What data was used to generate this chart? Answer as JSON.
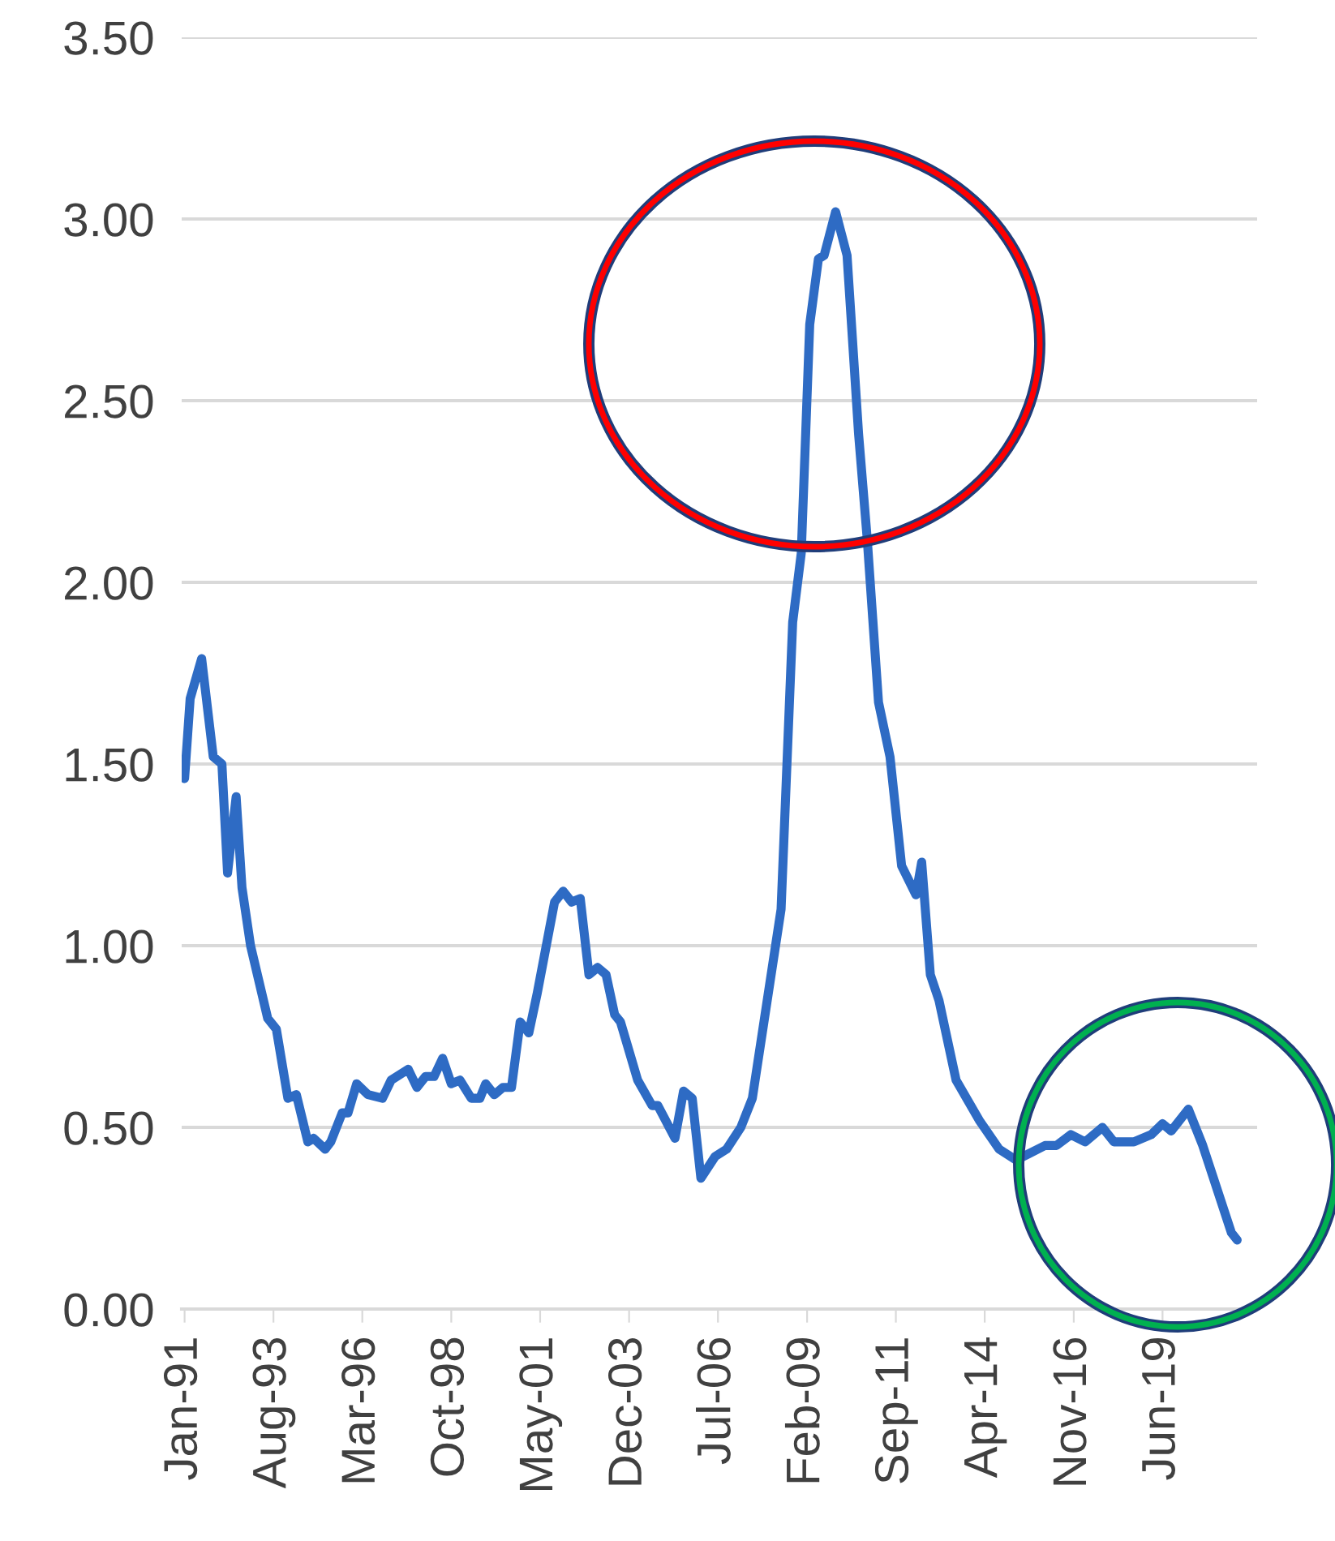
{
  "chart_data": {
    "type": "line",
    "x": [
      "1991-01",
      "1991-03",
      "1991-07",
      "1991-11",
      "1992-02",
      "1992-04",
      "1992-07",
      "1992-09",
      "1992-12",
      "1993-06",
      "1993-09",
      "1994-01",
      "1994-04",
      "1994-08",
      "1994-10",
      "1995-02",
      "1995-04",
      "1995-08",
      "1995-10",
      "1996-01",
      "1996-05",
      "1996-10",
      "1997-01",
      "1997-07",
      "1997-10",
      "1998-01",
      "1998-04",
      "1998-07",
      "1998-10",
      "1999-01",
      "1999-05",
      "1999-08",
      "1999-10",
      "2000-01",
      "2000-04",
      "2000-07",
      "2000-10",
      "2001-01",
      "2001-04",
      "2001-10",
      "2002-01",
      "2002-04",
      "2002-07",
      "2002-10",
      "2003-01",
      "2003-04",
      "2003-07",
      "2003-09",
      "2004-03",
      "2004-08",
      "2004-10",
      "2005-04",
      "2005-07",
      "2005-10",
      "2006-01",
      "2006-06",
      "2006-10",
      "2007-03",
      "2007-07",
      "2007-11",
      "2008-05",
      "2008-09",
      "2008-12",
      "2009-03",
      "2009-06",
      "2009-08",
      "2009-12",
      "2010-04",
      "2010-08",
      "2010-11",
      "2011-03",
      "2011-07",
      "2011-11",
      "2012-04",
      "2012-06",
      "2012-09",
      "2012-12",
      "2013-06",
      "2014-02",
      "2014-09",
      "2015-03",
      "2016-01",
      "2016-05",
      "2016-10",
      "2017-03",
      "2017-09",
      "2018-01",
      "2018-08",
      "2019-02",
      "2019-06",
      "2019-09",
      "2020-03",
      "2020-08",
      "2021-06",
      "2021-08"
    ],
    "series": [
      {
        "color": "#2e6bc4",
        "values": [
          1.46,
          1.68,
          1.79,
          1.52,
          1.5,
          1.2,
          1.41,
          1.16,
          1.0,
          0.8,
          0.77,
          0.58,
          0.59,
          0.46,
          0.47,
          0.44,
          0.46,
          0.54,
          0.54,
          0.62,
          0.59,
          0.58,
          0.63,
          0.66,
          0.61,
          0.64,
          0.64,
          0.69,
          0.62,
          0.63,
          0.58,
          0.58,
          0.62,
          0.59,
          0.61,
          0.61,
          0.79,
          0.76,
          0.87,
          1.12,
          1.15,
          1.12,
          1.13,
          0.92,
          0.94,
          0.92,
          0.81,
          0.79,
          0.63,
          0.56,
          0.56,
          0.47,
          0.6,
          0.58,
          0.36,
          0.42,
          0.44,
          0.5,
          0.58,
          0.79,
          1.1,
          1.89,
          2.08,
          2.71,
          2.89,
          2.9,
          3.02,
          2.9,
          2.41,
          2.12,
          1.67,
          1.52,
          1.22,
          1.14,
          1.23,
          0.92,
          0.85,
          0.63,
          0.52,
          0.44,
          0.41,
          0.45,
          0.45,
          0.48,
          0.46,
          0.5,
          0.46,
          0.46,
          0.48,
          0.51,
          0.49,
          0.55,
          0.45,
          0.21,
          0.19
        ]
      }
    ],
    "xlim": [
      "1990-12",
      "2022-03"
    ],
    "xticks": [
      {
        "value": "1991-01",
        "label": "Jan-91"
      },
      {
        "value": "1993-08",
        "label": "Aug-93"
      },
      {
        "value": "1996-03",
        "label": "Mar-96"
      },
      {
        "value": "1998-10",
        "label": "Oct-98"
      },
      {
        "value": "2001-05",
        "label": "May-01"
      },
      {
        "value": "2003-12",
        "label": "Dec-03"
      },
      {
        "value": "2006-07",
        "label": "Jul-06"
      },
      {
        "value": "2009-02",
        "label": "Feb-09"
      },
      {
        "value": "2011-09",
        "label": "Sep-11"
      },
      {
        "value": "2014-04",
        "label": "Apr-14"
      },
      {
        "value": "2016-11",
        "label": "Nov-16"
      },
      {
        "value": "2019-06",
        "label": "Jun-19"
      }
    ],
    "ylim": [
      0,
      3.5
    ],
    "yticks": [
      {
        "value": 0,
        "label": "0.00"
      },
      {
        "value": 0.5,
        "label": "0.50"
      },
      {
        "value": 1,
        "label": "1.00"
      },
      {
        "value": 1.5,
        "label": "1.50"
      },
      {
        "value": 2,
        "label": "2.00"
      },
      {
        "value": 2.5,
        "label": "2.50"
      },
      {
        "value": 3,
        "label": "3.00"
      },
      {
        "value": 3.5,
        "label": "3.50"
      }
    ],
    "grid": "y",
    "marker": "none",
    "line_style": "solid"
  }
}
